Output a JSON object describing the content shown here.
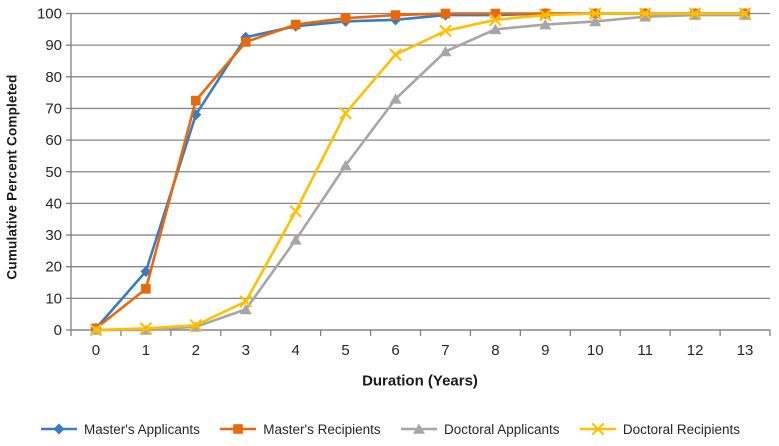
{
  "chart_data": {
    "type": "line",
    "title": "",
    "xlabel": "Duration (Years)",
    "ylabel": "Cumulative Percent Completed",
    "x_ticks": [
      "0",
      "1",
      "2",
      "3",
      "4",
      "5",
      "6",
      "7",
      "8",
      "9",
      "10",
      "11",
      "12",
      "13"
    ],
    "ylim": [
      0,
      100
    ],
    "ytick_step": 10,
    "grid": "horizontal",
    "legend_position": "bottom",
    "colors": {
      "axis": "#7f7f7f",
      "gridline": "#878787",
      "tick_label": "#262626",
      "axis_title": "#1a1a1a",
      "background": "#ffffff"
    },
    "series": [
      {
        "name": "Master's Applicants",
        "color": "#3a7cc1",
        "marker": "diamond",
        "values": [
          0.5,
          18.5,
          68,
          92.5,
          96,
          97.5,
          98,
          99.5,
          99.5,
          100,
          100,
          100,
          100,
          100
        ]
      },
      {
        "name": "Master's Recipients",
        "color": "#e8690b",
        "marker": "square",
        "values": [
          0.5,
          13,
          72.5,
          91,
          96.5,
          98.5,
          99.5,
          100,
          100,
          100,
          100,
          100,
          100,
          100
        ]
      },
      {
        "name": "Doctoral Applicants",
        "color": "#a6a6a6",
        "marker": "triangle",
        "values": [
          0,
          0,
          1,
          6.5,
          28.5,
          52,
          73,
          88,
          95,
          96.5,
          97.5,
          99,
          99.5,
          99.5
        ]
      },
      {
        "name": "Doctoral Recipients",
        "color": "#ffc000",
        "marker": "x",
        "values": [
          0,
          0.5,
          1.5,
          9,
          37.5,
          68.5,
          87,
          94.5,
          98,
          99.5,
          100,
          100,
          100,
          100
        ]
      }
    ]
  }
}
